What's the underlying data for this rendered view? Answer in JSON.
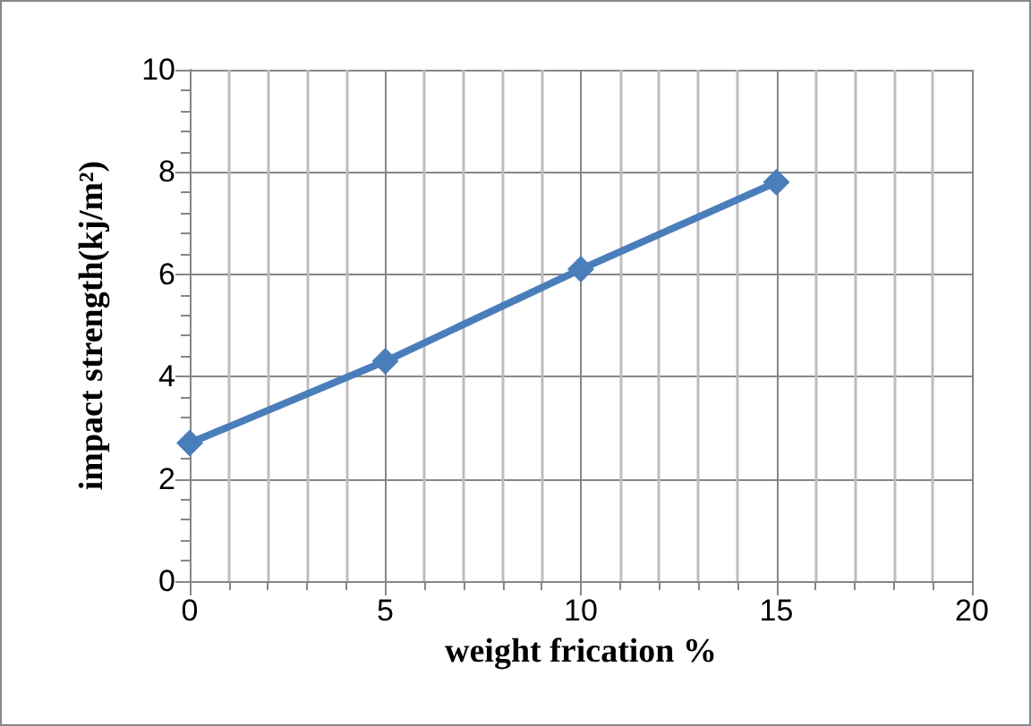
{
  "chart_data": {
    "type": "line",
    "xlabel": "weight frication %",
    "ylabel": "impact strength(kj/m²)",
    "x": [
      0,
      5,
      10,
      15
    ],
    "series": [
      {
        "color": "#4a7ebb",
        "values": [
          2.7,
          4.3,
          6.1,
          7.8
        ]
      }
    ],
    "xlim": [
      0,
      20
    ],
    "xticks": [
      0,
      5,
      10,
      15,
      20
    ],
    "ylim": [
      0,
      10
    ],
    "yticks": [
      0,
      2,
      4,
      6,
      8,
      10
    ],
    "grid": true,
    "marker": "diamond",
    "line_style": "solid"
  }
}
